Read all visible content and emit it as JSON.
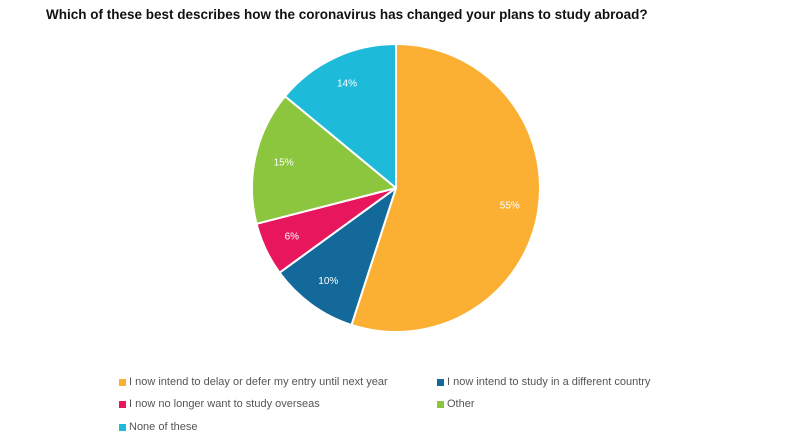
{
  "chart_data": {
    "type": "pie",
    "title": "Which of these best describes how the coronavirus has changed your plans to study abroad?",
    "slices": [
      {
        "label": "I now intend to delay or defer my entry until next year",
        "value": 55,
        "display": "55%",
        "color": "#FBB034"
      },
      {
        "label": "I now intend to study in a different country",
        "value": 10,
        "display": "10%",
        "color": "#136A9A"
      },
      {
        "label": "I now no longer want to study overseas",
        "value": 6,
        "display": "6%",
        "color": "#E8175D"
      },
      {
        "label": "Other",
        "value": 15,
        "display": "15%",
        "color": "#8CC63F"
      },
      {
        "label": "None of these",
        "value": 14,
        "display": "14%",
        "color": "#1DBBD9"
      }
    ],
    "legend_position": "bottom"
  }
}
